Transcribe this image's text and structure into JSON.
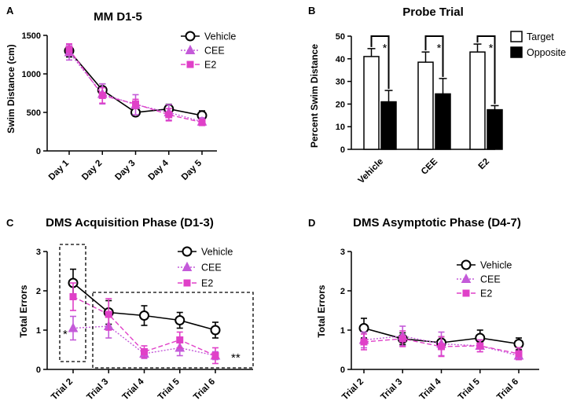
{
  "chart_data": [
    {
      "panel": "A",
      "type": "line",
      "title": "MM D1-5",
      "xlabel": "",
      "ylabel": "Swim Distance (cm)",
      "categories": [
        "Day 1",
        "Day 2",
        "Day 3",
        "Day 4",
        "Day 5"
      ],
      "ylim": [
        0,
        1500
      ],
      "yticks": [
        "0",
        "500",
        "1000",
        "1500"
      ],
      "series": [
        {
          "name": "Vehicle",
          "values": [
            1300,
            790,
            500,
            545,
            460
          ],
          "errors": [
            80,
            80,
            40,
            60,
            60
          ],
          "color": "#000000",
          "marker": "circle"
        },
        {
          "name": "CEE",
          "values": [
            1280,
            740,
            600,
            500,
            380
          ],
          "errors": [
            100,
            130,
            130,
            100,
            50
          ],
          "color": "#c45ad9",
          "marker": "triangle"
        },
        {
          "name": "E2",
          "values": [
            1320,
            720,
            610,
            470,
            370
          ],
          "errors": [
            70,
            100,
            60,
            80,
            40
          ],
          "color": "#e040c8",
          "marker": "square"
        }
      ],
      "legend": "top-right"
    },
    {
      "panel": "B",
      "type": "bar",
      "title": "Probe Trial",
      "ylabel": "Percent Swim Distance",
      "categories": [
        "Vehicle",
        "CEE",
        "E2"
      ],
      "ylim": [
        0,
        50
      ],
      "yticks": [
        "0",
        "10",
        "20",
        "30",
        "40",
        "50"
      ],
      "series": [
        {
          "name": "Target",
          "values": [
            41,
            38.5,
            43
          ],
          "errors": [
            3.5,
            4.5,
            3.5
          ],
          "color": "#ffffff"
        },
        {
          "name": "Opposite",
          "values": [
            21,
            24.5,
            17.5
          ],
          "errors": [
            5,
            6.8,
            1.8
          ],
          "color": "#000000"
        }
      ],
      "significance": [
        "*",
        "*",
        "*"
      ],
      "legend": "top-right"
    },
    {
      "panel": "C",
      "type": "line",
      "title": "DMS Acquisition Phase (D1-3)",
      "ylabel": "Total Errors",
      "categories": [
        "Trial 2",
        "Trial 3",
        "Trial 4",
        "Trial 5",
        "Trial 6"
      ],
      "ylim": [
        0,
        3
      ],
      "yticks": [
        "0",
        "1",
        "2",
        "3"
      ],
      "series": [
        {
          "name": "Vehicle",
          "values": [
            2.2,
            1.45,
            1.37,
            1.25,
            1.0
          ],
          "errors": [
            0.35,
            0.3,
            0.25,
            0.2,
            0.2
          ],
          "color": "#000000",
          "marker": "circle"
        },
        {
          "name": "CEE",
          "values": [
            1.05,
            1.1,
            0.4,
            0.55,
            0.35
          ],
          "errors": [
            0.3,
            0.3,
            0.12,
            0.2,
            0.1
          ],
          "color": "#c45ad9",
          "marker": "triangle"
        },
        {
          "name": "E2",
          "values": [
            1.85,
            1.4,
            0.45,
            0.75,
            0.35
          ],
          "errors": [
            0.35,
            0.4,
            0.15,
            0.2,
            0.2
          ],
          "color": "#e040c8",
          "marker": "square"
        }
      ],
      "annotations": [
        "*",
        "**"
      ],
      "legend": "top-right"
    },
    {
      "panel": "D",
      "type": "line",
      "title": "DMS Asymptotic Phase (D4-7)",
      "ylabel": "Total Errors",
      "categories": [
        "Trial 2",
        "Trial 3",
        "Trial 4",
        "Trial 5",
        "Trial 6"
      ],
      "ylim": [
        0,
        3
      ],
      "yticks": [
        "0",
        "1",
        "2",
        "3"
      ],
      "series": [
        {
          "name": "Vehicle",
          "values": [
            1.05,
            0.78,
            0.68,
            0.8,
            0.65
          ],
          "errors": [
            0.25,
            0.15,
            0.15,
            0.2,
            0.15
          ],
          "color": "#000000",
          "marker": "circle"
        },
        {
          "name": "CEE",
          "values": [
            0.75,
            0.85,
            0.65,
            0.6,
            0.35
          ],
          "errors": [
            0.2,
            0.25,
            0.3,
            0.15,
            0.1
          ],
          "color": "#c45ad9",
          "marker": "triangle"
        },
        {
          "name": "E2",
          "values": [
            0.7,
            0.78,
            0.58,
            0.6,
            0.4
          ],
          "errors": [
            0.2,
            0.2,
            0.25,
            0.15,
            0.15
          ],
          "color": "#e040c8",
          "marker": "square"
        }
      ],
      "legend": "top-right"
    }
  ]
}
